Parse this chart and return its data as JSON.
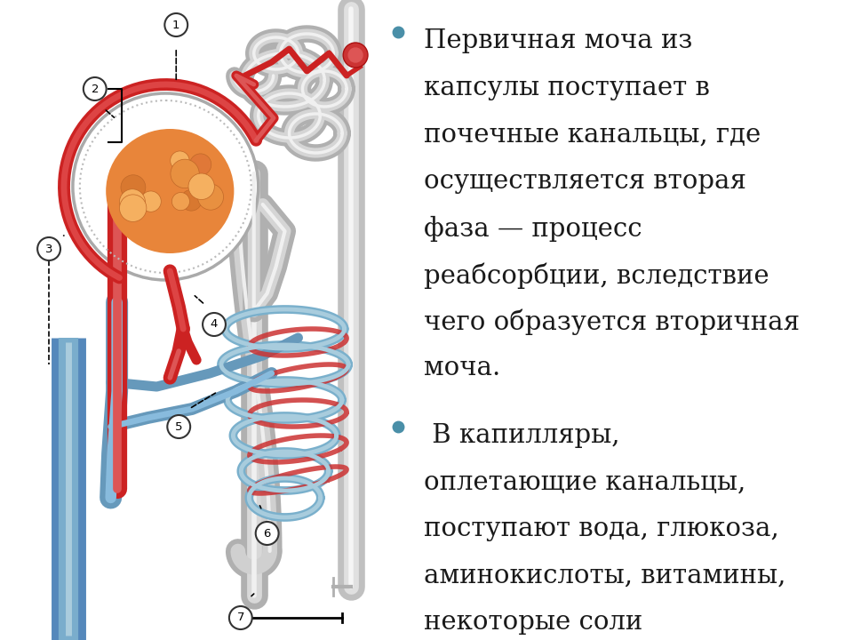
{
  "background_color": "#ffffff",
  "left_bg_color": "#ffffff",
  "bullet_color": "#4a8fa8",
  "text_color": "#1a1a1a",
  "bullet1_lines": [
    "Первичная моча из",
    "капсулы поступает в",
    "почечные канальцы, где",
    "осуществляется вторая",
    "фаза — процесс",
    "реабсорбции, вследствие",
    "чего образуется вторичная",
    "моча."
  ],
  "bullet2_lines": [
    " В капилляры,",
    "оплетающие канальцы,",
    "поступают вода, глюкоза,",
    "аминокислоты, витамины,",
    "некоторые соли"
  ],
  "font_size_text": 21,
  "font_size_labels": 10,
  "left_edge_color": "#c8b090"
}
